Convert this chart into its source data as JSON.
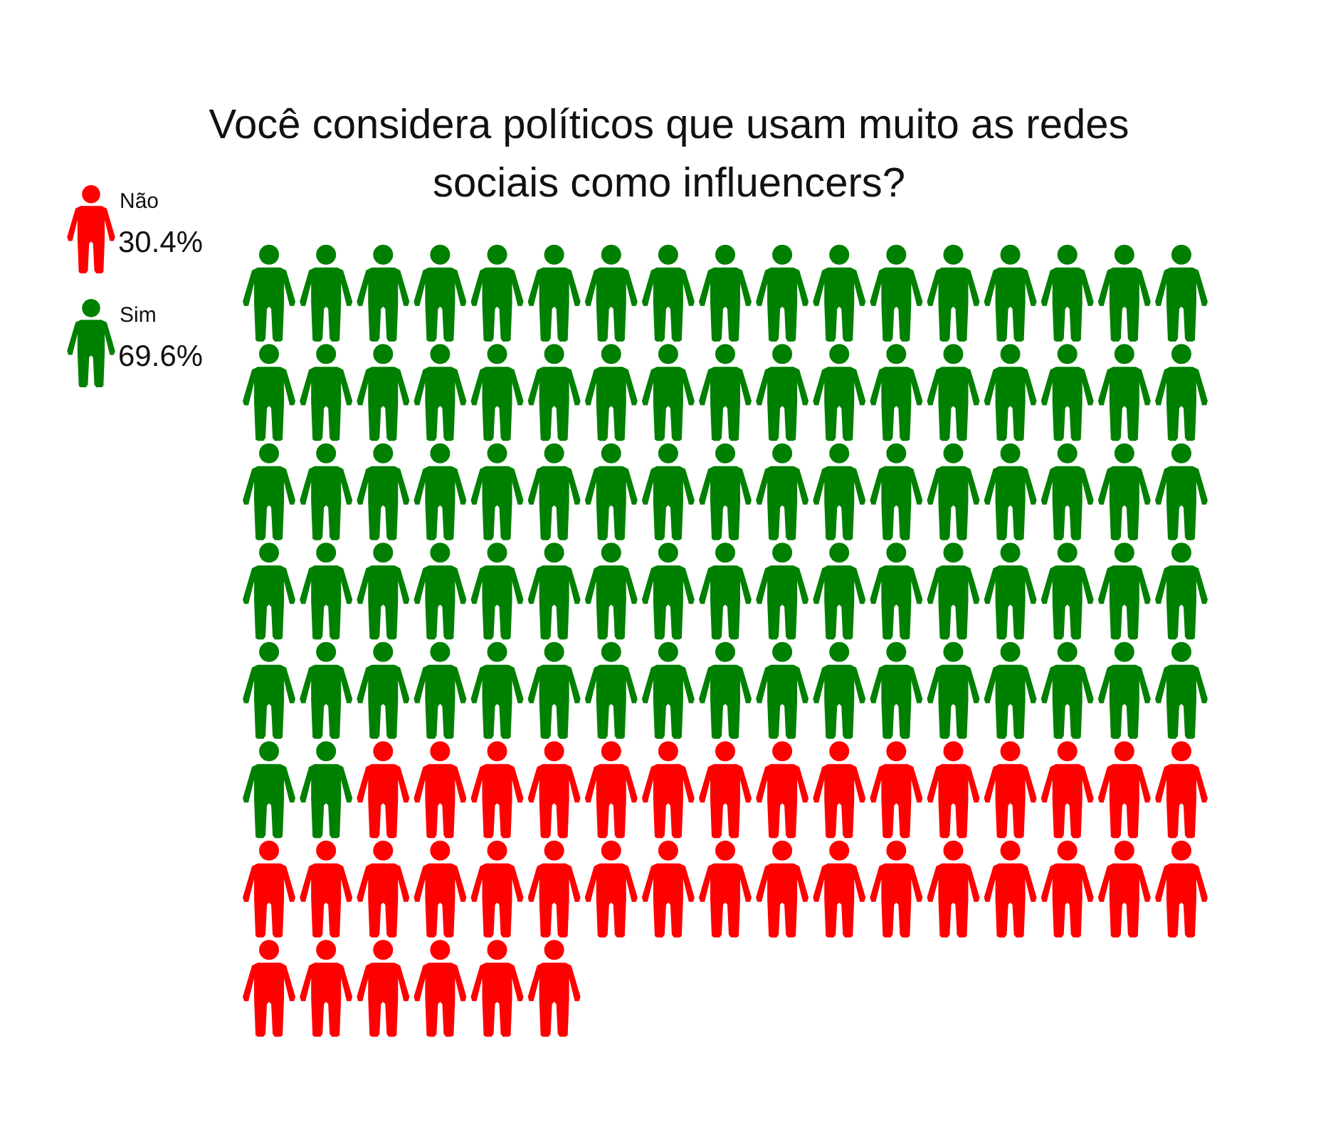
{
  "chart_data": {
    "type": "other",
    "title": "Você considera políticos que usam muito as redes sociais como influencers?",
    "series": [
      {
        "name": "Não",
        "color": "#ff0000",
        "values": [
          30.4
        ],
        "value_labels": [
          "30.4%"
        ]
      },
      {
        "name": "Sim",
        "color": "#008000",
        "values": [
          69.6
        ],
        "value_labels": [
          "69.6%"
        ]
      }
    ],
    "legend": "top left"
  }
}
